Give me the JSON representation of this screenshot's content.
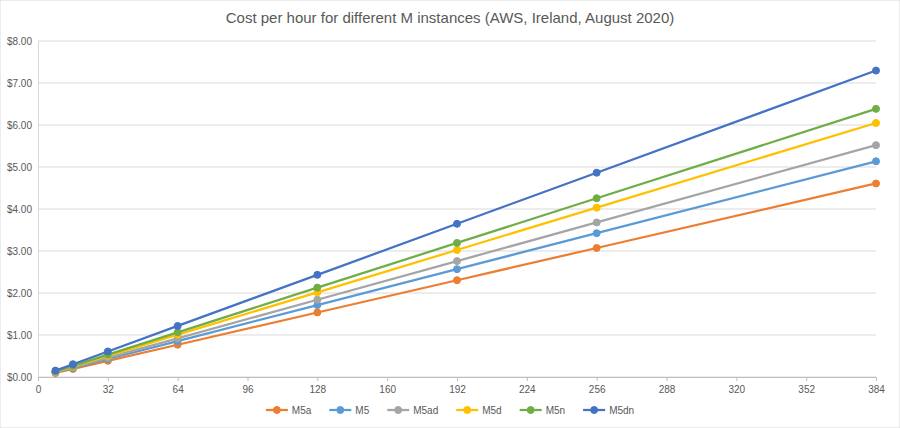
{
  "chart_data": {
    "type": "line",
    "title": "Cost per hour for different M instances (AWS, Ireland, August 2020)",
    "x": [
      8,
      16,
      32,
      64,
      128,
      192,
      256,
      384
    ],
    "xlim": [
      0,
      384
    ],
    "xticks": [
      0,
      32,
      64,
      96,
      128,
      160,
      192,
      224,
      256,
      288,
      320,
      352,
      384
    ],
    "ylim": [
      0,
      8
    ],
    "yticks": [
      {
        "value": 0,
        "label": "$0.00"
      },
      {
        "value": 1,
        "label": "$1.00"
      },
      {
        "value": 2,
        "label": "$2.00"
      },
      {
        "value": 3,
        "label": "$3.00"
      },
      {
        "value": 4,
        "label": "$4.00"
      },
      {
        "value": 5,
        "label": "$5.00"
      },
      {
        "value": 6,
        "label": "$6.00"
      },
      {
        "value": 7,
        "label": "$7.00"
      },
      {
        "value": 8,
        "label": "$8.00"
      }
    ],
    "grid": true,
    "legend": "bottom",
    "marker": "circle",
    "line_style": "solid",
    "series": [
      {
        "name": "M5a",
        "color": "#ed7d31",
        "values": [
          0.096,
          0.192,
          0.384,
          0.768,
          1.536,
          2.304,
          3.072,
          4.608
        ]
      },
      {
        "name": "M5",
        "color": "#5b9bd5",
        "values": [
          0.107,
          0.214,
          0.428,
          0.856,
          1.712,
          2.568,
          3.424,
          5.136
        ]
      },
      {
        "name": "M5ad",
        "color": "#a5a5a5",
        "values": [
          0.115,
          0.23,
          0.46,
          0.92,
          1.84,
          2.76,
          3.68,
          5.52
        ]
      },
      {
        "name": "M5d",
        "color": "#ffc000",
        "values": [
          0.126,
          0.252,
          0.504,
          1.008,
          2.016,
          3.024,
          4.032,
          6.048
        ]
      },
      {
        "name": "M5n",
        "color": "#70ad47",
        "values": [
          0.133,
          0.266,
          0.532,
          1.064,
          2.128,
          3.192,
          4.256,
          6.384
        ]
      },
      {
        "name": "M5dn",
        "color": "#4472c4",
        "values": [
          0.152,
          0.304,
          0.608,
          1.216,
          2.432,
          3.648,
          4.864,
          7.296
        ]
      }
    ]
  }
}
